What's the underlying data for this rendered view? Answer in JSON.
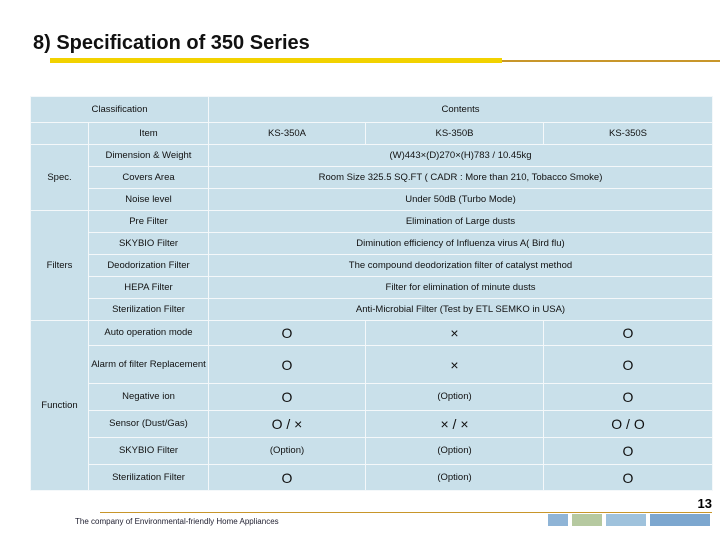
{
  "header": {
    "title": "8) Specification of 350 Series"
  },
  "table": {
    "header": [
      "Classification",
      "Contents"
    ],
    "item_row": [
      "Item",
      "KS-350A",
      "KS-350B",
      "KS-350S"
    ],
    "groups": [
      {
        "label": "Spec.",
        "rows": [
          {
            "item": "Dimension & Weight",
            "value": "(W)443×(D)270×(H)783 / 10.45kg"
          },
          {
            "item": "Covers Area",
            "value": "Room Size 325.5 SQ.FT ( CADR : More than 210, Tobacco Smoke)"
          },
          {
            "item": "Noise level",
            "value": "Under 50dB (Turbo Mode)"
          }
        ]
      },
      {
        "label": "Filters",
        "rows": [
          {
            "item": "Pre Filter",
            "value": "Elimination of Large dusts"
          },
          {
            "item": "SKYBIO Filter",
            "value": "Diminution efficiency of Influenza virus A( Bird flu)"
          },
          {
            "item": "Deodorization Filter",
            "value": "The compound deodorization filter of catalyst method"
          },
          {
            "item": "HEPA Filter",
            "value": "Filter for elimination of minute dusts"
          },
          {
            "item": "Sterilization Filter",
            "value": "Anti-Microbial Filter (Test by ETL SEMKO in USA)"
          }
        ]
      },
      {
        "label": "Function",
        "rows": [
          {
            "item": "Auto operation mode",
            "values": [
              "O",
              "×",
              "O"
            ]
          },
          {
            "item": "Alarm of filter Replacement",
            "values": [
              "O",
              "×",
              "O"
            ]
          },
          {
            "item": "Negative ion",
            "values": [
              "O",
              "(Option)",
              "O"
            ]
          },
          {
            "item": "Sensor (Dust/Gas)",
            "values": [
              "O / ×",
              "× / ×",
              "O / O"
            ]
          },
          {
            "item": "SKYBIO Filter",
            "values": [
              "(Option)",
              "(Option)",
              "O"
            ]
          },
          {
            "item": "Sterilization Filter",
            "values": [
              "O",
              "(Option)",
              "O"
            ]
          }
        ]
      }
    ]
  },
  "footer": {
    "slogan": "The company of Environmental-friendly Home Appliances",
    "page": "13"
  }
}
